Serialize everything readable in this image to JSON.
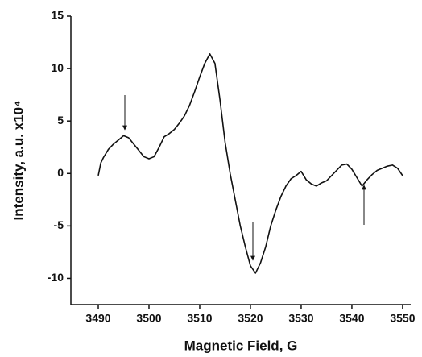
{
  "chart_data": {
    "type": "line",
    "xlabel": "Magnetic Field, G",
    "ylabel": "Intensity, a.u. x10⁴",
    "x": [
      3490,
      3490.5,
      3491,
      3492,
      3493,
      3494,
      3495,
      3496,
      3497,
      3498,
      3499,
      3500,
      3501,
      3502,
      3503,
      3504,
      3505,
      3506,
      3507,
      3508,
      3509,
      3510,
      3511,
      3512,
      3513,
      3514,
      3515,
      3516,
      3517,
      3518,
      3519,
      3520,
      3521,
      3522,
      3523,
      3524,
      3525,
      3526,
      3527,
      3528,
      3529,
      3530,
      3531,
      3532,
      3533,
      3534,
      3535,
      3536,
      3537,
      3538,
      3539,
      3540,
      3541,
      3542,
      3543,
      3544,
      3545,
      3546,
      3547,
      3548,
      3549,
      3550
    ],
    "series": [
      {
        "color": "#111111",
        "values": [
          -0.2,
          1,
          1.5,
          2.3,
          2.8,
          3.2,
          3.6,
          3.4,
          2.8,
          2.2,
          1.6,
          1.4,
          1.6,
          2.5,
          3.5,
          3.8,
          4.2,
          4.8,
          5.5,
          6.5,
          7.8,
          9.2,
          10.5,
          11.4,
          10.5,
          7,
          3,
          0,
          -2.5,
          -5,
          -7,
          -8.8,
          -9.5,
          -8.5,
          -7,
          -5,
          -3.5,
          -2.2,
          -1.2,
          -0.5,
          -0.2,
          0.2,
          -0.6,
          -1,
          -1.2,
          -0.9,
          -0.7,
          -0.2,
          0.3,
          0.8,
          0.9,
          0.4,
          -0.4,
          -1.2,
          -0.6,
          -0.1,
          0.3,
          0.5,
          0.7,
          0.8,
          0.5,
          -0.2
        ]
      }
    ],
    "xlim": [
      3484.6,
      3551.6
    ],
    "ylim": [
      -12.5,
      15
    ],
    "xticks": [
      3490,
      3500,
      3510,
      3520,
      3530,
      3540,
      3550
    ],
    "yticks": [
      -10,
      -5,
      0,
      5,
      10,
      15
    ]
  }
}
